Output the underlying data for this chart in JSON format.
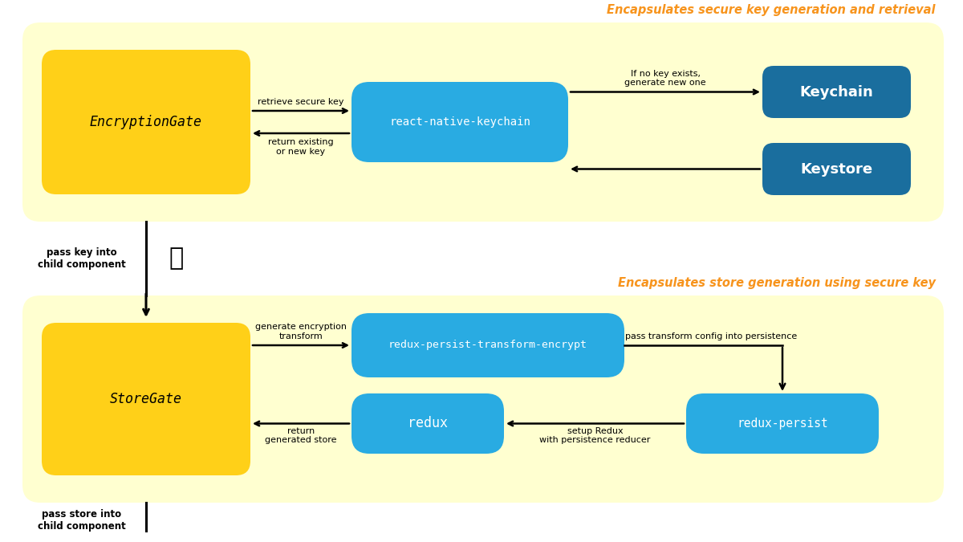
{
  "bg_color": "#ffffff",
  "panel_bg": "#FFFFD0",
  "yellow_box_color": "#FFD018",
  "blue_box_color": "#29ABE2",
  "dark_blue_box_color": "#1A6E9E",
  "orange_text_color": "#F7941D",
  "black_text": "#000000",
  "white_text": "#ffffff",
  "panel1_title": "Encapsulates secure key generation and retrieval",
  "panel2_title": "Encapsulates store generation using secure key",
  "encryption_gate_label": "EncryptionGate",
  "store_gate_label": "StoreGate",
  "keychain_label": "Keychain",
  "keystore_label": "Keystore",
  "rnk_label": "react-native-keychain",
  "rpte_label": "redux-persist-transform-encrypt",
  "redux_label": "redux",
  "rp_label": "redux-persist",
  "lbl_retrieve": "retrieve secure key",
  "lbl_return_key": "return existing\nor new key",
  "lbl_no_key": "If no key exists,\ngenerate new one",
  "lbl_pass_key": "pass key into\nchild component",
  "lbl_gen_enc": "generate encryption\ntransform",
  "lbl_return_store": "return\ngenerated store",
  "lbl_pass_transform": "pass transform config into persistence",
  "lbl_setup_redux": "setup Redux\nwith persistence reducer",
  "lbl_pass_store": "pass store into\nchild component"
}
